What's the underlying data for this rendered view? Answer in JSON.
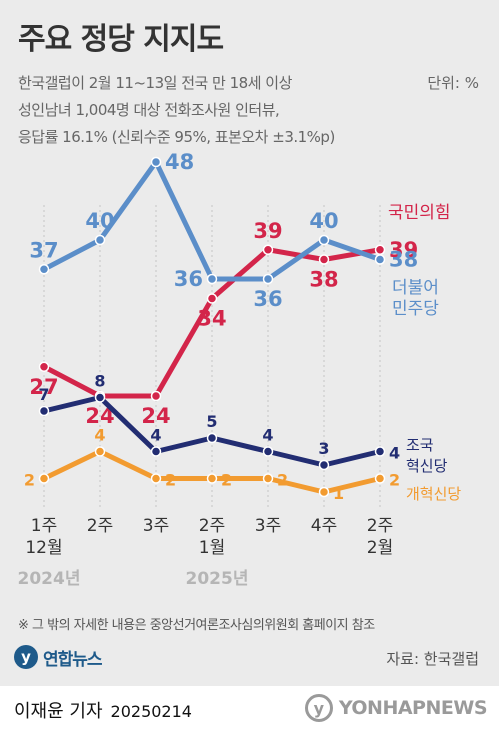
{
  "header": {
    "title": "주요 정당 지지도",
    "subtitle_lines": [
      "한국갤럽이 2월 11~13일 전국 만 18세 이상",
      "성인남녀 1,004명 대상 전화조사원 인터뷰,",
      "응답률 16.1% (신뢰수준 95%, 표본오차 ±3.1%p)"
    ],
    "unit": "단위: %"
  },
  "chart_data": {
    "type": "line",
    "categories": [
      "1주 12월",
      "2주",
      "3주",
      "2주 1월",
      "3주",
      "4주",
      "2주 2월"
    ],
    "x_tick_lines": [
      [
        "1주",
        "12월"
      ],
      [
        "2주"
      ],
      [
        "3주"
      ],
      [
        "2주",
        "1월"
      ],
      [
        "3주"
      ],
      [
        "4주"
      ],
      [
        "2주",
        "2월"
      ]
    ],
    "year_labels": [
      {
        "text": "2024년",
        "under_index": 0
      },
      {
        "text": "2025년",
        "under_index": 3
      }
    ],
    "series": [
      {
        "name": "국민의힘",
        "name_lines": [
          "국민의힘"
        ],
        "color": "#d3254a",
        "values": [
          27,
          24,
          24,
          34,
          39,
          38,
          39
        ],
        "axis": "upper",
        "label_pos": [
          "b",
          "b",
          "b",
          "b",
          "t",
          "b",
          "r"
        ]
      },
      {
        "name": "더불어민주당",
        "name_lines": [
          "더불어",
          "민주당"
        ],
        "color": "#5b8ec9",
        "values": [
          37,
          40,
          48,
          36,
          36,
          40,
          38
        ],
        "axis": "upper",
        "label_pos": [
          "t",
          "t",
          "r",
          "l",
          "b",
          "t",
          "r"
        ]
      },
      {
        "name": "조국혁신당",
        "name_lines": [
          "조국",
          "혁신당"
        ],
        "color": "#222d72",
        "values": [
          7,
          8,
          4,
          5,
          4,
          3,
          4
        ],
        "axis": "lower",
        "label_pos": [
          "t",
          "t",
          "t",
          "t",
          "t",
          "t",
          "r"
        ]
      },
      {
        "name": "개혁신당",
        "name_lines": [
          "개혁신당"
        ],
        "color": "#f29b30",
        "values": [
          2,
          4,
          2,
          2,
          2,
          1,
          2
        ],
        "axis": "lower",
        "label_pos": [
          "l",
          "t",
          "r",
          "r",
          "r",
          "r",
          "r"
        ]
      }
    ],
    "grid": false
  },
  "footer": {
    "note": "※ 그 밖의 자세한 내용은 중앙선거여론조사심의위원회 홈페이지 참조",
    "brand": "연합뉴스",
    "brand_mark": "y",
    "source": "자료: 한국갤럽",
    "author": "이재윤 기자",
    "date": "20250214",
    "watermark": "YONHAPNEWS",
    "watermark_mark": "y"
  }
}
